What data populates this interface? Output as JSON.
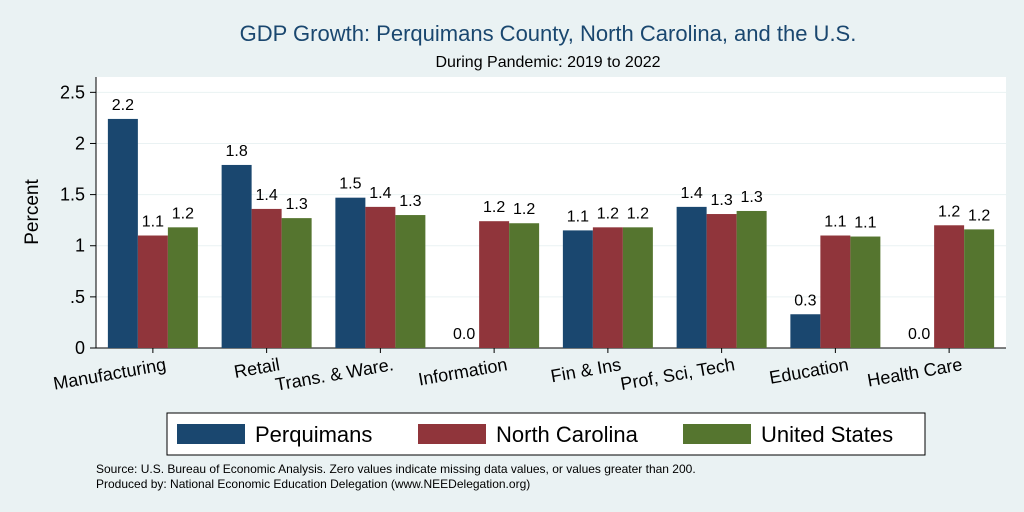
{
  "chart_data": {
    "type": "bar",
    "title": "GDP Growth: Perquimans County, North Carolina, and the U.S.",
    "subtitle": "During Pandemic: 2019 to 2022",
    "ylabel": "Percent",
    "xlabel": "",
    "ylim": [
      0,
      2.65
    ],
    "yticks": [
      {
        "value": 0,
        "label": "0"
      },
      {
        "value": 0.5,
        "label": ".5"
      },
      {
        "value": 1,
        "label": "1"
      },
      {
        "value": 1.5,
        "label": "1.5"
      },
      {
        "value": 2,
        "label": "2"
      },
      {
        "value": 2.5,
        "label": "2.5"
      }
    ],
    "grid": true,
    "categories": [
      "Manufacturing",
      "Retail",
      "Trans. & Ware.",
      "Information",
      "Fin & Ins",
      "Prof, Sci, Tech",
      "Education",
      "Health Care"
    ],
    "series": [
      {
        "name": "Perquimans",
        "color": "#1a476f",
        "values": [
          2.24,
          1.79,
          1.47,
          0.0,
          1.15,
          1.38,
          0.33,
          0.0
        ],
        "labels": [
          "2.2",
          "1.8",
          "1.5",
          "0.0",
          "1.1",
          "1.4",
          "0.3",
          "0.0"
        ]
      },
      {
        "name": "North Carolina",
        "color": "#90353b",
        "values": [
          1.1,
          1.36,
          1.38,
          1.24,
          1.18,
          1.31,
          1.1,
          1.2
        ],
        "labels": [
          "1.1",
          "1.4",
          "1.4",
          "1.2",
          "1.2",
          "1.3",
          "1.1",
          "1.2"
        ]
      },
      {
        "name": "United States",
        "color": "#55752f",
        "values": [
          1.18,
          1.27,
          1.3,
          1.22,
          1.18,
          1.34,
          1.09,
          1.16
        ],
        "labels": [
          "1.2",
          "1.3",
          "1.3",
          "1.2",
          "1.2",
          "1.3",
          "1.1",
          "1.2"
        ]
      }
    ],
    "legend": {
      "position": "bottom",
      "items": [
        "Perquimans",
        "North Carolina",
        "United States"
      ]
    }
  },
  "footer": {
    "source": "Source: U.S. Bureau of Economic Analysis. Zero values indicate missing data values, or values greater than 200.",
    "produced": "Produced by: National Economic Education Delegation (www.NEEDelegation.org)"
  }
}
